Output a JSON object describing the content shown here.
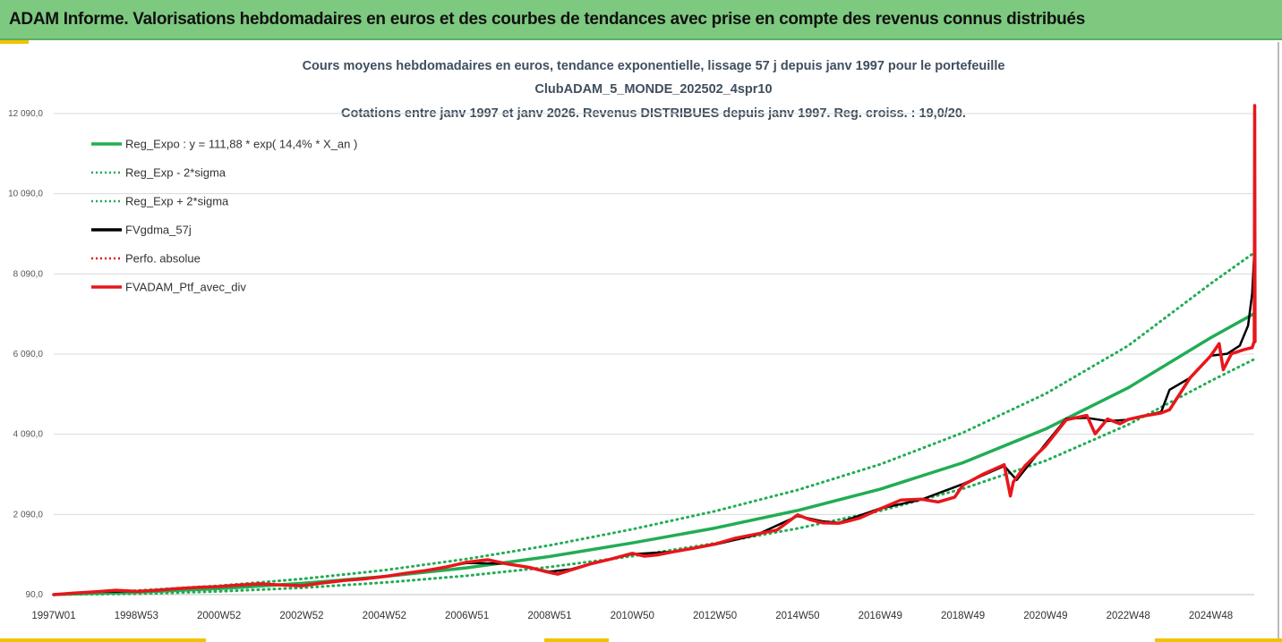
{
  "banner": {
    "title": "ADAM Informe. Valorisations hebdomadaires en euros et des courbes de tendances avec prise en compte des revenus connus distribués"
  },
  "chart_title_lines": [
    "Cours moyens hebdomadaires  en euros, tendance exponentielle, lissage 57 j depuis janv 1997 pour le portefeuille",
    "ClubADAM_5_MONDE_202502_4spr10",
    "Cotations entre janv 1997 et janv 2026. Revenus DISTRIBUES depuis janv 1997. Reg. croiss. : 19,0/20."
  ],
  "colors": {
    "banner": "#7dc97f",
    "accent": "#f2c200",
    "trend": "#21ad54",
    "band": "#21ad54",
    "ma": "#000000",
    "portfolio": "#e8161b",
    "grid": "#d9d9d9",
    "title": "#3f4f5f"
  },
  "chart_data": {
    "type": "line",
    "x_range_years": [
      1997.0,
      2026.05
    ],
    "ylim": [
      90,
      12090
    ],
    "y_ticks": [
      90,
      2090,
      4090,
      6090,
      8090,
      10090,
      12090
    ],
    "y_tick_labels": [
      "90,0",
      "2 090,0",
      "4 090,0",
      "6 090,0",
      "8 090,0",
      "10 090,0",
      "12 090,0"
    ],
    "x_tick_labels": [
      "1997W01",
      "1998W53",
      "2000W52",
      "2002W52",
      "2004W52",
      "2006W51",
      "2008W51",
      "2010W50",
      "2012W50",
      "2014W50",
      "2016W49",
      "2018W49",
      "2020W49",
      "2022W48",
      "2024W48"
    ],
    "x_tick_years": [
      1997.0,
      1999.0,
      2001.0,
      2003.0,
      2005.0,
      2007.0,
      2009.0,
      2011.0,
      2013.0,
      2015.0,
      2017.0,
      2019.0,
      2021.0,
      2023.0,
      2025.0
    ],
    "grid": true,
    "legend_position": "top-left",
    "legend": [
      {
        "label": "Reg_Expo : y = 111,88 * exp( 14,4% *  X_an )",
        "style": "solid",
        "color": "#21ad54"
      },
      {
        "label": "Reg_Exp - 2*sigma",
        "style": "dotted",
        "color": "#21ad54"
      },
      {
        "label": "Reg_Exp + 2*sigma",
        "style": "dotted",
        "color": "#21ad54"
      },
      {
        "label": "FVgdma_57j",
        "style": "solid",
        "color": "#000000"
      },
      {
        "label": "Perfo. absolue",
        "style": "dotted",
        "color": "#e8161b"
      },
      {
        "label": "FVADAM_Ptf_avec_div",
        "style": "solid",
        "color": "#e8161b"
      }
    ],
    "trend": {
      "x": [
        1997.0,
        1999.0,
        2001.0,
        2003.0,
        2005.0,
        2007.0,
        2009.0,
        2011.0,
        2013.0,
        2015.0,
        2017.0,
        2019.0,
        2021.0,
        2023.0,
        2025.0,
        2026.05
      ],
      "y": [
        90,
        150,
        240,
        370,
        540,
        760,
        1040,
        1380,
        1750,
        2190,
        2720,
        3380,
        4220,
        5250,
        6500,
        7100
      ]
    },
    "band_minus": {
      "x": [
        1997.0,
        1999.0,
        2001.0,
        2003.0,
        2005.0,
        2007.0,
        2009.0,
        2011.0,
        2013.0,
        2015.0,
        2017.0,
        2019.0,
        2021.0,
        2023.0,
        2025.0,
        2026.05
      ],
      "y": [
        90,
        110,
        170,
        260,
        390,
        560,
        780,
        1050,
        1370,
        1740,
        2180,
        2730,
        3430,
        4330,
        5420,
        5960
      ]
    },
    "band_plus": {
      "x": [
        1997.0,
        1999.0,
        2001.0,
        2003.0,
        2005.0,
        2007.0,
        2009.0,
        2011.0,
        2013.0,
        2015.0,
        2017.0,
        2019.0,
        2021.0,
        2023.0,
        2025.0,
        2026.05
      ],
      "y": [
        90,
        190,
        310,
        480,
        700,
        980,
        1320,
        1720,
        2170,
        2700,
        3340,
        4130,
        5100,
        6300,
        7850,
        8620
      ]
    },
    "portfolio": {
      "x": [
        1997.0,
        1997.5,
        1998.0,
        1998.5,
        1999.0,
        1999.5,
        2000.0,
        2000.5,
        2001.0,
        2001.5,
        2002.0,
        2002.5,
        2003.0,
        2003.5,
        2004.0,
        2004.5,
        2005.0,
        2005.5,
        2006.0,
        2006.5,
        2007.0,
        2007.5,
        2008.0,
        2008.5,
        2009.0,
        2009.2,
        2009.5,
        2010.0,
        2010.5,
        2011.0,
        2011.3,
        2011.6,
        2012.0,
        2012.5,
        2013.0,
        2013.5,
        2014.0,
        2014.5,
        2015.0,
        2015.3,
        2015.6,
        2016.0,
        2016.2,
        2016.5,
        2017.0,
        2017.5,
        2018.0,
        2018.4,
        2018.8,
        2019.0,
        2019.5,
        2020.0,
        2020.15,
        2020.22,
        2020.5,
        2021.0,
        2021.5,
        2022.0,
        2022.2,
        2022.5,
        2022.8,
        2023.0,
        2023.4,
        2023.8,
        2024.0,
        2024.5,
        2025.0,
        2025.2,
        2025.3,
        2025.5,
        2025.8,
        2026.0,
        2026.03,
        2026.05,
        2026.06,
        2026.07
      ],
      "y": [
        90,
        130,
        160,
        200,
        170,
        200,
        240,
        270,
        290,
        330,
        360,
        330,
        310,
        380,
        440,
        480,
        540,
        620,
        690,
        780,
        900,
        960,
        850,
        770,
        640,
        600,
        700,
        860,
        980,
        1120,
        1050,
        1080,
        1160,
        1250,
        1350,
        1500,
        1600,
        1700,
        2080,
        1960,
        1880,
        1870,
        1920,
        2000,
        2230,
        2450,
        2470,
        2400,
        2520,
        2820,
        3100,
        3330,
        2550,
        2900,
        3300,
        3800,
        4450,
        4560,
        4100,
        4470,
        4350,
        4460,
        4550,
        4620,
        4700,
        5500,
        6050,
        6350,
        5700,
        6100,
        6200,
        6250,
        6350,
        6400,
        12290,
        6400
      ]
    },
    "moving_average": {
      "x": [
        1997.0,
        1998.0,
        1999.0,
        2000.0,
        2001.0,
        2002.0,
        2003.0,
        2004.0,
        2005.0,
        2006.0,
        2007.0,
        2008.0,
        2009.0,
        2009.5,
        2010.0,
        2011.0,
        2012.0,
        2013.0,
        2014.0,
        2015.0,
        2015.6,
        2016.0,
        2017.0,
        2018.0,
        2019.0,
        2020.0,
        2020.3,
        2021.0,
        2021.5,
        2022.0,
        2022.5,
        2023.0,
        2023.8,
        2024.0,
        2024.5,
        2025.0,
        2025.4,
        2025.7,
        2025.9,
        2026.0,
        2026.05
      ],
      "y": [
        90,
        160,
        175,
        240,
        290,
        350,
        320,
        440,
        540,
        690,
        880,
        860,
        660,
        720,
        860,
        1100,
        1160,
        1340,
        1580,
        2050,
        1920,
        1880,
        2240,
        2460,
        2850,
        3300,
        2950,
        3850,
        4480,
        4500,
        4420,
        4450,
        4650,
        5200,
        5500,
        6050,
        6100,
        6300,
        6800,
        7600,
        8600
      ]
    }
  }
}
